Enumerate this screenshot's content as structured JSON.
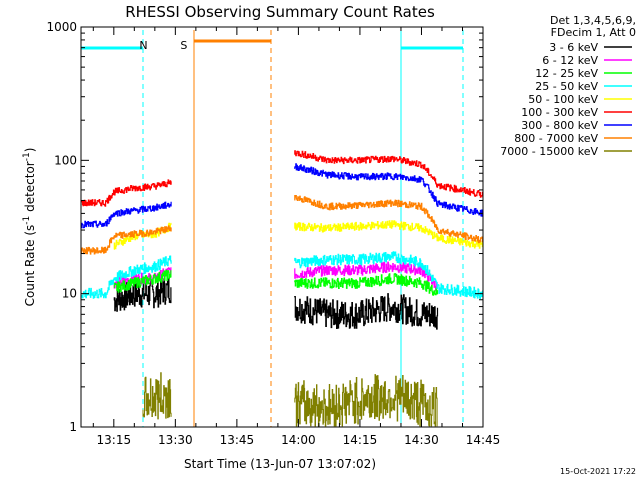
{
  "chart_data": {
    "type": "line",
    "title": "RHESSI Observing Summary Count Rates",
    "xlabel": "Start Time (13-Jun-07 13:07:02)",
    "ylabel_prefix": "Count Rate (s",
    "ylabel_sup1": "-1",
    "ylabel_mid": " detector",
    "ylabel_sup2": "-1",
    "ylabel_suffix": ")",
    "y_scale": "log",
    "ylim": [
      1,
      1000
    ],
    "xlim_minutes": [
      0,
      98
    ],
    "y_ticks": [
      {
        "value": 1,
        "label": "1"
      },
      {
        "value": 10,
        "label": "10"
      },
      {
        "value": 100,
        "label": "100"
      },
      {
        "value": 1000,
        "label": "1000"
      }
    ],
    "x_ticks": [
      {
        "minute": 8,
        "label": "13:15"
      },
      {
        "minute": 23,
        "label": "13:30"
      },
      {
        "minute": 38,
        "label": "13:45"
      },
      {
        "minute": 53,
        "label": "14:00"
      },
      {
        "minute": 68,
        "label": "14:15"
      },
      {
        "minute": 83,
        "label": "14:30"
      },
      {
        "minute": 98,
        "label": "14:45"
      }
    ],
    "legend_header": [
      "Det 1,3,4,5,6,9,",
      "FDecim 1, Att 0"
    ],
    "series": [
      {
        "name": "3 - 6 keV",
        "color": "#000000",
        "segments": [
          [
            [
              8,
              9
            ],
            [
              13,
              10
            ],
            [
              18,
              10
            ],
            [
              22,
              11
            ]
          ],
          [
            [
              52,
              8
            ],
            [
              60,
              7
            ],
            [
              68,
              7
            ],
            [
              76,
              8
            ],
            [
              83,
              7
            ],
            [
              87,
              7
            ]
          ]
        ]
      },
      {
        "name": "6 - 12 keV",
        "color": "#ff00ff",
        "segments": [
          [
            [
              8,
              12
            ],
            [
              13,
              13
            ],
            [
              18,
              13
            ],
            [
              22,
              15
            ]
          ],
          [
            [
              52,
              14
            ],
            [
              60,
              15
            ],
            [
              68,
              15
            ],
            [
              76,
              16
            ],
            [
              83,
              15
            ],
            [
              87,
              11
            ]
          ]
        ]
      },
      {
        "name": "12 - 25 keV",
        "color": "#00ff00",
        "segments": [
          [
            [
              8,
              11
            ],
            [
              13,
              12
            ],
            [
              18,
              13
            ],
            [
              22,
              14
            ]
          ],
          [
            [
              52,
              12
            ],
            [
              60,
              12
            ],
            [
              68,
              12
            ],
            [
              76,
              13
            ],
            [
              83,
              12
            ],
            [
              87,
              10
            ]
          ]
        ]
      },
      {
        "name": "25 - 50 keV",
        "color": "#00ffff",
        "segments": [
          [
            [
              0,
              10
            ],
            [
              6,
              10
            ],
            [
              8,
              13
            ],
            [
              13,
              15
            ],
            [
              18,
              16
            ],
            [
              22,
              18
            ]
          ],
          [
            [
              52,
              17
            ],
            [
              60,
              18
            ],
            [
              68,
              18
            ],
            [
              76,
              19
            ],
            [
              83,
              17
            ],
            [
              87,
              11
            ],
            [
              98,
              10
            ]
          ]
        ]
      },
      {
        "name": "50 - 100 keV",
        "color": "#ffff00",
        "segments": [
          [
            [
              8,
              23
            ],
            [
              13,
              27
            ],
            [
              18,
              28
            ],
            [
              22,
              32
            ]
          ],
          [
            [
              52,
              32
            ],
            [
              60,
              31
            ],
            [
              68,
              32
            ],
            [
              76,
              33
            ],
            [
              83,
              31
            ],
            [
              87,
              26
            ],
            [
              98,
              23
            ]
          ]
        ]
      },
      {
        "name": "100 - 300 keV",
        "color": "#ff0000",
        "segments": [
          [
            [
              0,
              48
            ],
            [
              6,
              48
            ],
            [
              8,
              58
            ],
            [
              13,
              62
            ],
            [
              18,
              64
            ],
            [
              22,
              68
            ]
          ],
          [
            [
              52,
              115
            ],
            [
              60,
              100
            ],
            [
              68,
              100
            ],
            [
              76,
              103
            ],
            [
              83,
              93
            ],
            [
              87,
              65
            ],
            [
              98,
              55
            ]
          ]
        ]
      },
      {
        "name": "300 - 800 keV",
        "color": "#0000ff",
        "segments": [
          [
            [
              0,
              33
            ],
            [
              6,
              33
            ],
            [
              8,
              40
            ],
            [
              13,
              42
            ],
            [
              18,
              44
            ],
            [
              22,
              47
            ]
          ],
          [
            [
              52,
              90
            ],
            [
              60,
              78
            ],
            [
              68,
              75
            ],
            [
              76,
              76
            ],
            [
              83,
              72
            ],
            [
              87,
              47
            ],
            [
              98,
              40
            ]
          ]
        ]
      },
      {
        "name": "800 - 7000 keV",
        "color": "#ff8000",
        "segments": [
          [
            [
              0,
              21
            ],
            [
              6,
              21
            ],
            [
              8,
              27
            ],
            [
              13,
              28
            ],
            [
              18,
              29
            ],
            [
              22,
              31
            ]
          ],
          [
            [
              52,
              53
            ],
            [
              60,
              45
            ],
            [
              68,
              46
            ],
            [
              76,
              48
            ],
            [
              83,
              45
            ],
            [
              87,
              30
            ],
            [
              98,
              25
            ]
          ]
        ]
      },
      {
        "name": "7000 - 15000 keV",
        "color": "#808000",
        "segments": [
          [
            [
              15,
              1.6
            ],
            [
              20,
              1.7
            ],
            [
              22,
              1.8
            ]
          ],
          [
            [
              52,
              1.5
            ],
            [
              60,
              1.4
            ],
            [
              68,
              1.6
            ],
            [
              76,
              1.7
            ],
            [
              83,
              1.5
            ],
            [
              87,
              1.3
            ]
          ]
        ]
      }
    ],
    "annotations": [
      {
        "label": "N",
        "color": "#00ffff",
        "minute": 13
      },
      {
        "label": "S",
        "color": "#ff8000",
        "minute": 23
      }
    ],
    "footer_stamp": "15-Oct-2021 17:22"
  }
}
